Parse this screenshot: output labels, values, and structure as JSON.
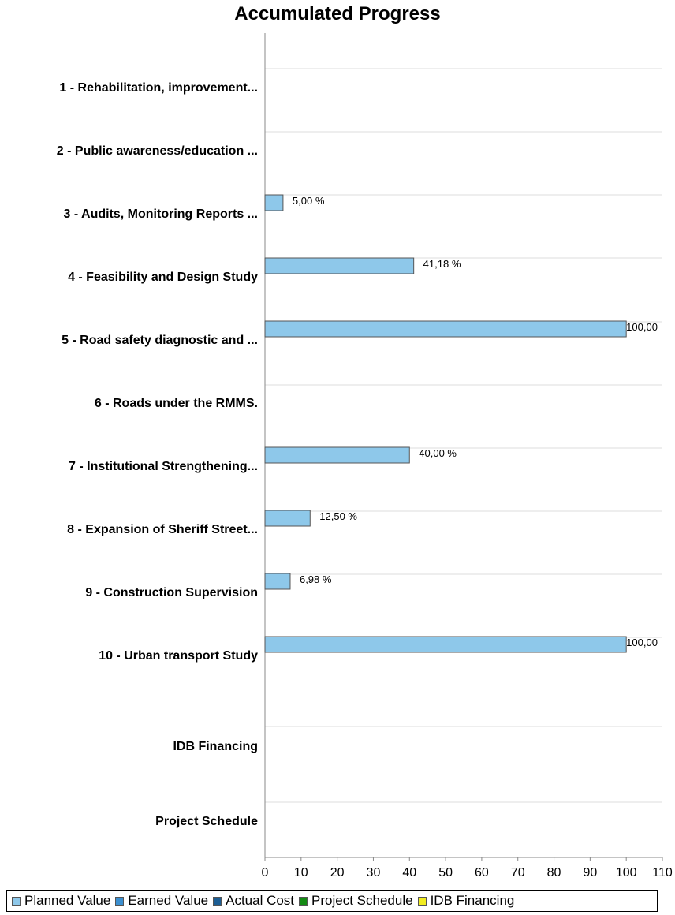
{
  "chart_data": {
    "type": "bar",
    "orientation": "horizontal",
    "title": "Accumulated Progress",
    "xlabel": "",
    "ylabel": "",
    "xlim": [
      0,
      110
    ],
    "x_ticks": [
      0,
      10,
      20,
      30,
      40,
      50,
      60,
      70,
      80,
      90,
      100,
      110
    ],
    "grid": "horizontal",
    "categories": [
      "1 - Rehabilitation, improvement...",
      "2 - Public awareness/education ...",
      "3 - Audits, Monitoring Reports ...",
      "4 - Feasibility and Design Study",
      "5 - Road safety diagnostic and ...",
      "6 - Roads under the RMMS.",
      "7 - Institutional Strengthening...",
      "8 - Expansion of Sheriff Street...",
      "9 - Construction Supervision",
      "10 - Urban transport Study",
      "IDB Financing",
      "Project Schedule"
    ],
    "series": [
      {
        "name": "Planned Value",
        "color": "#8ec8ea",
        "values": [
          null,
          null,
          5.0,
          41.18,
          100.0,
          null,
          40.0,
          12.5,
          6.98,
          100.0,
          null,
          null
        ],
        "labels": [
          "",
          "",
          "5,00 %",
          "41,18 %",
          "100,00",
          "",
          "40,00 %",
          "12,50 %",
          "6,98 %",
          "100,00",
          "",
          ""
        ]
      }
    ],
    "legend_position": "bottom",
    "legend": [
      {
        "name": "Planned Value",
        "color": "#8ec8ea"
      },
      {
        "name": "Earned Value",
        "color": "#3b8fd0"
      },
      {
        "name": "Actual Cost",
        "color": "#1d5e94"
      },
      {
        "name": "Project Schedule",
        "color": "#138a13"
      },
      {
        "name": "IDB Financing",
        "color": "#f2ec20"
      }
    ]
  }
}
